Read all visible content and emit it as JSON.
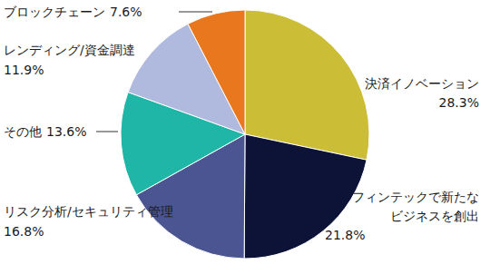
{
  "chart_data": {
    "type": "pie",
    "categories": [
      "決済イノベーション",
      "フィンテックで新たなビジネスを創出",
      "リスク分析/セキュリティ管理",
      "その他",
      "レンディング/資金調達",
      "ブロックチェーン"
    ],
    "values": [
      28.3,
      21.8,
      16.8,
      13.6,
      11.9,
      7.6
    ],
    "value_labels": [
      "28.3%",
      "21.8%",
      "16.8%",
      "13.6%",
      "11.9%",
      "7.6%"
    ],
    "colors": [
      "#cbbd36",
      "#0c1337",
      "#4b5591",
      "#1fb6a7",
      "#b0b9de",
      "#e9771e"
    ],
    "data_labels": true
  }
}
